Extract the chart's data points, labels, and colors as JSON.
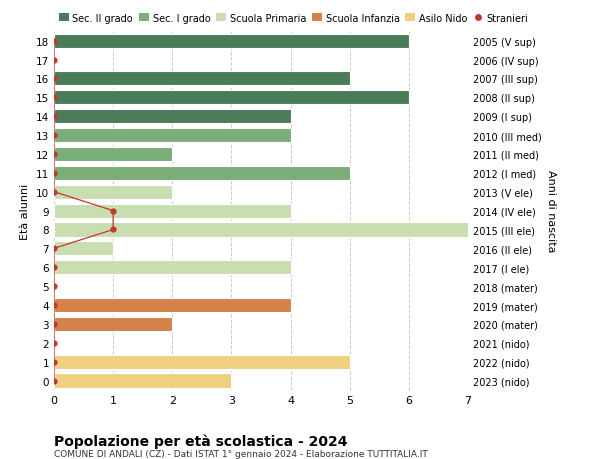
{
  "ages": [
    18,
    17,
    16,
    15,
    14,
    13,
    12,
    11,
    10,
    9,
    8,
    7,
    6,
    5,
    4,
    3,
    2,
    1,
    0
  ],
  "years": [
    "2005 (V sup)",
    "2006 (IV sup)",
    "2007 (III sup)",
    "2008 (II sup)",
    "2009 (I sup)",
    "2010 (III med)",
    "2011 (II med)",
    "2012 (I med)",
    "2013 (V ele)",
    "2014 (IV ele)",
    "2015 (III ele)",
    "2016 (II ele)",
    "2017 (I ele)",
    "2018 (mater)",
    "2019 (mater)",
    "2020 (mater)",
    "2021 (nido)",
    "2022 (nido)",
    "2023 (nido)"
  ],
  "bar_values": [
    6,
    0,
    5,
    6,
    4,
    4,
    2,
    5,
    2,
    4,
    7,
    1,
    4,
    0,
    4,
    2,
    0,
    5,
    3
  ],
  "bar_colors": [
    "#4a7c59",
    "#4a7c59",
    "#4a7c59",
    "#4a7c59",
    "#4a7c59",
    "#7aad78",
    "#7aad78",
    "#7aad78",
    "#c8ddb0",
    "#c8ddb0",
    "#c8ddb0",
    "#c8ddb0",
    "#c8ddb0",
    "#c8ddb0",
    "#d4824a",
    "#d4824a",
    "#f0d080",
    "#f0d080",
    "#f0d080"
  ],
  "stranieri_x": [
    0,
    0,
    0,
    0,
    0,
    0,
    0,
    0,
    0,
    1,
    1,
    0,
    0,
    0,
    0,
    0,
    0,
    0,
    0
  ],
  "legend_labels": [
    "Sec. II grado",
    "Sec. I grado",
    "Scuola Primaria",
    "Scuola Infanzia",
    "Asilo Nido",
    "Stranieri"
  ],
  "legend_colors": [
    "#4a7c59",
    "#7aad78",
    "#c8ddb0",
    "#d4824a",
    "#f0d080",
    "#c0392b"
  ],
  "title": "Popolazione per età scolastica - 2024",
  "subtitle": "COMUNE DI ANDALI (CZ) - Dati ISTAT 1° gennaio 2024 - Elaborazione TUTTITALIA.IT",
  "ylabel": "Età alunni",
  "right_label": "Anni di nascita",
  "xlim": [
    0,
    7
  ],
  "background_color": "#ffffff",
  "bar_height": 0.75
}
